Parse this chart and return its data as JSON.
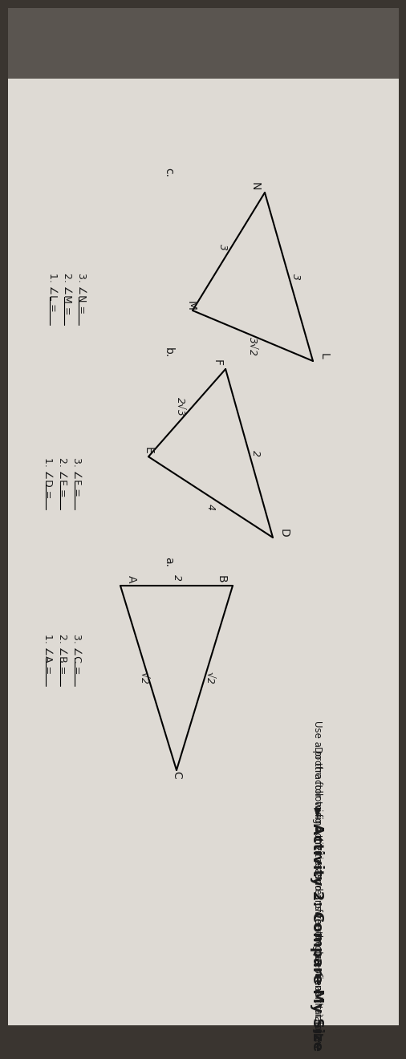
{
  "title": "► Activity 2: Compare My Size",
  "subtitle1": "Do the following activities and answer the questions that follow.",
  "subtitle2": "Use a protractor to find the measures of the angles of each triangle.",
  "bg_paper": "#e8e4de",
  "bg_shadow": "#2a2a2a",
  "bg_page": "#dedad4",
  "text_color": "#1a1a1a",
  "tri_a_pts": {
    "B": [
      0.0,
      1.0
    ],
    "A": [
      0.0,
      0.0
    ],
    "C": [
      1.0,
      0.5
    ]
  },
  "tri_a_sides": [
    {
      "n1": "B",
      "n2": "C",
      "label": "√2",
      "ox": 0,
      "oy": 6
    },
    {
      "n1": "B",
      "n2": "A",
      "label": "2",
      "ox": -10,
      "oy": 0
    },
    {
      "n1": "A",
      "n2": "C",
      "label": "√2",
      "ox": 0,
      "oy": -6
    }
  ],
  "tri_b_pts": {
    "D": [
      1.0,
      1.0
    ],
    "F": [
      0.0,
      0.62
    ],
    "E": [
      0.52,
      0.0
    ]
  },
  "tri_b_sides": [
    {
      "n1": "D",
      "n2": "F",
      "label": "2",
      "ox": 0,
      "oy": 8
    },
    {
      "n1": "D",
      "n2": "E",
      "label": "4",
      "ox": 12,
      "oy": 0
    },
    {
      "n1": "F",
      "n2": "E",
      "label": "2√3",
      "ox": -8,
      "oy": -8
    }
  ],
  "tri_c_pts": {
    "L": [
      1.0,
      1.0
    ],
    "N": [
      0.0,
      0.6
    ],
    "M": [
      0.7,
      0.0
    ]
  },
  "tri_c_sides": [
    {
      "n1": "L",
      "n2": "N",
      "label": "3",
      "ox": 0,
      "oy": 8
    },
    {
      "n1": "L",
      "n2": "M",
      "label": "3√2",
      "ox": 14,
      "oy": 0
    },
    {
      "n1": "N",
      "n2": "M",
      "label": "3",
      "ox": -5,
      "oy": -8
    }
  ],
  "q_a": [
    "1. ∠A =",
    "2. ∠B =",
    "3. ∠C ="
  ],
  "q_b": [
    "1. ∠D =",
    "2. ∠E =",
    "3. ∠F ="
  ],
  "q_c": [
    "1. ∠L =",
    "2. ∠M =",
    "3. ∠N ="
  ],
  "label_a": "a.",
  "label_b": "b.",
  "label_c": "c.",
  "rot_deg": 90
}
